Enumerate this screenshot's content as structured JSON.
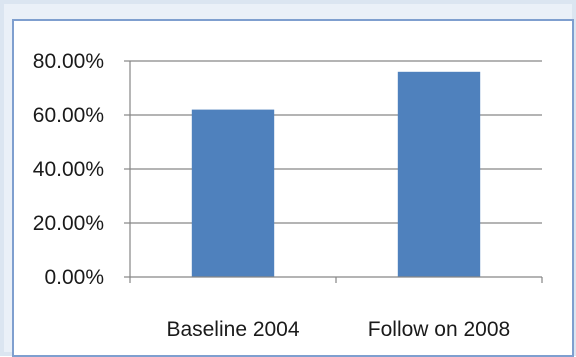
{
  "chart_data": {
    "type": "bar",
    "categories": [
      "Baseline 2004",
      "Follow on 2008"
    ],
    "values": [
      0.62,
      0.76
    ],
    "yticks": [
      "0.00%",
      "20.00%",
      "40.00%",
      "60.00%",
      "80.00%"
    ],
    "ylim": [
      0,
      0.8
    ],
    "grid": true,
    "legend": "none",
    "bar_color": "#4f81bd",
    "title": "",
    "xlabel": "",
    "ylabel": ""
  }
}
